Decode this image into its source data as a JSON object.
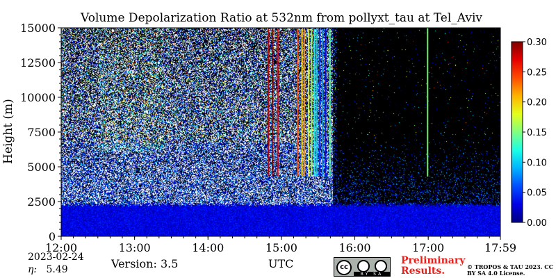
{
  "chart_data": {
    "type": "heatmap",
    "title": "Volume Depolarization Ratio at 532nm from pollyxt_tau at Tel_Aviv",
    "ylabel": "Height (m)",
    "xlabel": "UTC",
    "x_ticks": [
      "12:00",
      "13:00",
      "14:00",
      "15:00",
      "16:00",
      "17:00",
      "17:59"
    ],
    "x_range_hours": [
      12.0,
      17.983
    ],
    "y_ticks": [
      0,
      2500,
      5000,
      7500,
      10000,
      12500,
      15000
    ],
    "y_ticks_text": [
      "0",
      "2500",
      "5000",
      "7500",
      "10000",
      "12500",
      "15000"
    ],
    "ylim": [
      0,
      15000
    ],
    "colorbar": {
      "ticks": [
        "0.00",
        "0.05",
        "0.10",
        "0.15",
        "0.20",
        "0.25",
        "0.30"
      ],
      "range": [
        0,
        0.3
      ],
      "colormap": "jet"
    },
    "structures": {
      "boundary_layer_top_m": 2300,
      "boundary_layer_ratio": 0.03,
      "dense_noise_until_hour": 15.7,
      "clear_after_hour": 15.75,
      "high_depol_streaks_hours": [
        {
          "t": 14.82,
          "v": 0.28
        },
        {
          "t": 14.88,
          "v": 0.3
        },
        {
          "t": 14.95,
          "v": 0.27
        },
        {
          "t": 15.22,
          "v": 0.24
        },
        {
          "t": 15.28,
          "v": 0.2
        },
        {
          "t": 15.31,
          "v": 0.22
        },
        {
          "t": 15.37,
          "v": 0.18
        },
        {
          "t": 15.41,
          "v": 0.16
        },
        {
          "t": 15.45,
          "v": 0.12
        },
        {
          "t": 15.48,
          "v": 0.1
        },
        {
          "t": 15.52,
          "v": 0.05
        },
        {
          "t": 15.56,
          "v": 0.08
        },
        {
          "t": 15.6,
          "v": 0.03
        },
        {
          "t": 15.66,
          "v": 0.14
        },
        {
          "t": 16.99,
          "v": 0.15
        }
      ]
    }
  },
  "date": "2023-02-24",
  "eta_label": "η:",
  "eta_value": "5.49",
  "version": "Version: 3.5",
  "preliminary": "Preliminary Results.",
  "copyright": "© TROPOS & TAU 2023. CC BY SA 4.0 License.",
  "badge": {
    "cc": "cc",
    "strip": "BY SA"
  }
}
